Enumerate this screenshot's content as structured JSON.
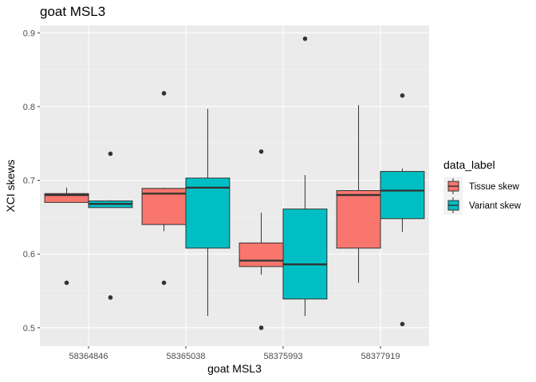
{
  "chart_data": {
    "type": "box",
    "title": "goat MSL3",
    "xlabel": "goat MSL3",
    "ylabel": "XCI skews",
    "ylim": [
      0.475,
      0.91
    ],
    "yticks": [
      0.5,
      0.6,
      0.7,
      0.8,
      0.9
    ],
    "ytick_labels": [
      "0.5",
      "0.6",
      "0.7",
      "0.8",
      "0.9"
    ],
    "categories": [
      "58364846",
      "58365038",
      "58375993",
      "58377919"
    ],
    "grid": true,
    "legend_position": "right",
    "legend_title": "data_label",
    "series": [
      {
        "name": "Tissue skew",
        "color": "#F8766D",
        "boxes": [
          {
            "whisker_low": 0.67,
            "q1": 0.67,
            "median": 0.68,
            "q3": 0.682,
            "whisker_high": 0.69,
            "outliers": [
              0.561
            ]
          },
          {
            "whisker_low": 0.631,
            "q1": 0.64,
            "median": 0.682,
            "q3": 0.689,
            "whisker_high": 0.69,
            "outliers": [
              0.818,
              0.561
            ]
          },
          {
            "whisker_low": 0.572,
            "q1": 0.583,
            "median": 0.591,
            "q3": 0.615,
            "whisker_high": 0.656,
            "outliers": [
              0.739,
              0.5
            ]
          },
          {
            "whisker_low": 0.561,
            "q1": 0.608,
            "median": 0.68,
            "q3": 0.686,
            "whisker_high": 0.802,
            "outliers": []
          }
        ]
      },
      {
        "name": "Variant skew",
        "color": "#00BFC4",
        "boxes": [
          {
            "whisker_low": 0.663,
            "q1": 0.663,
            "median": 0.668,
            "q3": 0.672,
            "whisker_high": 0.673,
            "outliers": [
              0.736,
              0.541
            ]
          },
          {
            "whisker_low": 0.516,
            "q1": 0.608,
            "median": 0.69,
            "q3": 0.703,
            "whisker_high": 0.797,
            "outliers": []
          },
          {
            "whisker_low": 0.516,
            "q1": 0.539,
            "median": 0.586,
            "q3": 0.661,
            "whisker_high": 0.707,
            "outliers": [
              0.892
            ]
          },
          {
            "whisker_low": 0.63,
            "q1": 0.648,
            "median": 0.686,
            "q3": 0.712,
            "whisker_high": 0.716,
            "outliers": [
              0.815,
              0.505
            ]
          }
        ]
      }
    ]
  }
}
